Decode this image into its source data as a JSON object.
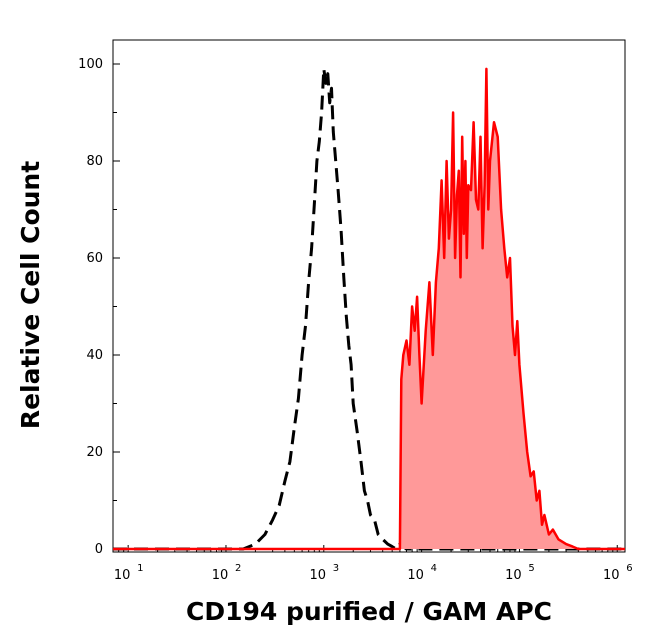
{
  "chart_data": {
    "type": "area",
    "xlabel": "CD194 purified / GAM APC",
    "ylabel": "Relative Cell Count",
    "x_scale": "log",
    "xlim": [
      7,
      1200000
    ],
    "ylim": [
      0,
      105
    ],
    "x_ticks": [
      {
        "base": "10",
        "exp": "1",
        "value": 10
      },
      {
        "base": "10",
        "exp": "2",
        "value": 100
      },
      {
        "base": "10",
        "exp": "3",
        "value": 1000
      },
      {
        "base": "10",
        "exp": "4",
        "value": 10000
      },
      {
        "base": "10",
        "exp": "5",
        "value": 100000
      },
      {
        "base": "10",
        "exp": "6",
        "value": 1000000
      }
    ],
    "y_ticks": [
      "0",
      "20",
      "40",
      "60",
      "80",
      "100"
    ],
    "grid": false,
    "series": [
      {
        "role": "control",
        "color": "#000000",
        "fill": "none",
        "dash": true,
        "x": [
          7,
          150,
          200,
          250,
          300,
          350,
          400,
          450,
          500,
          550,
          600,
          650,
          700,
          750,
          800,
          850,
          900,
          950,
          1000,
          1050,
          1100,
          1150,
          1200,
          1250,
          1300,
          1400,
          1500,
          1600,
          1700,
          1800,
          1900,
          2000,
          2200,
          2400,
          2600,
          2800,
          3000,
          3300,
          3600,
          4000,
          4500,
          5000,
          5500,
          6000,
          7000,
          10000,
          30000,
          100000,
          1200000
        ],
        "y": [
          0,
          0,
          1,
          3,
          6,
          9,
          14,
          18,
          25,
          31,
          40,
          46,
          55,
          62,
          71,
          80,
          84,
          90,
          99,
          96,
          98,
          92,
          95,
          86,
          82,
          74,
          66,
          56,
          48,
          42,
          38,
          30,
          24,
          18,
          12,
          10,
          7,
          6,
          3,
          2,
          1,
          0.5,
          0,
          1,
          0,
          0,
          0,
          0,
          0
        ]
      },
      {
        "role": "sample",
        "color": "#ff0000",
        "fill": "#ff9999",
        "dash": false,
        "x": [
          7,
          5000,
          6000,
          6200,
          6500,
          7000,
          7500,
          8000,
          8500,
          9000,
          9500,
          10000,
          11000,
          12000,
          13000,
          14000,
          15000,
          16000,
          17000,
          18000,
          19000,
          20000,
          21000,
          22000,
          23000,
          24000,
          25000,
          26000,
          27000,
          28000,
          29000,
          30000,
          32000,
          34000,
          36000,
          38000,
          40000,
          42000,
          44000,
          46000,
          48000,
          50000,
          55000,
          60000,
          65000,
          70000,
          75000,
          80000,
          85000,
          90000,
          95000,
          100000,
          110000,
          120000,
          130000,
          140000,
          150000,
          160000,
          170000,
          180000,
          200000,
          220000,
          250000,
          300000,
          350000,
          400000,
          1200000
        ],
        "y": [
          0,
          0,
          0,
          35,
          40,
          43,
          38,
          50,
          45,
          52,
          40,
          30,
          45,
          55,
          40,
          55,
          62,
          76,
          60,
          80,
          64,
          70,
          90,
          60,
          73,
          78,
          56,
          85,
          65,
          80,
          60,
          75,
          74,
          88,
          72,
          70,
          85,
          62,
          75,
          99,
          70,
          80,
          88,
          85,
          70,
          62,
          56,
          60,
          46,
          40,
          47,
          38,
          28,
          20,
          15,
          16,
          10,
          12,
          5,
          7,
          3,
          4,
          2,
          1,
          0.5,
          0,
          0
        ]
      }
    ]
  }
}
